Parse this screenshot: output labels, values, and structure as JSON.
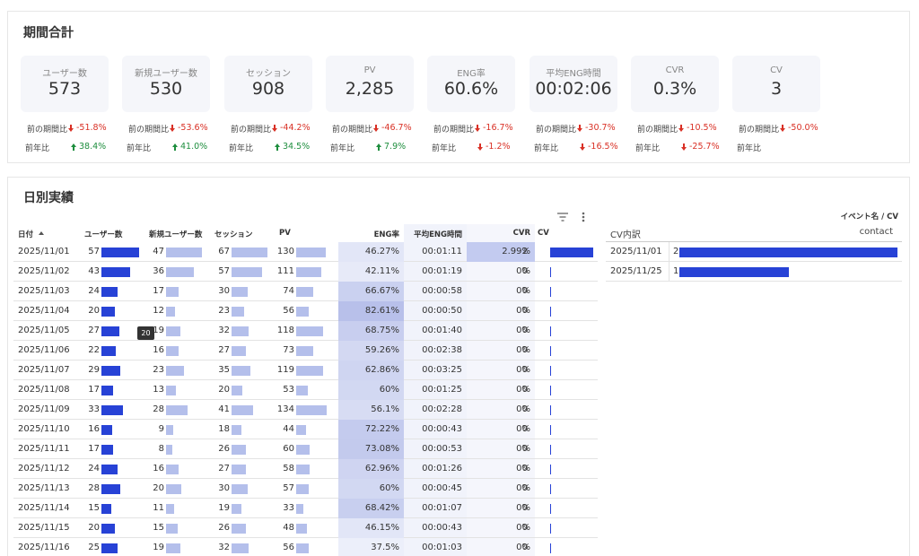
{
  "summary": {
    "title": "期間合計",
    "prev_label": "前の期間比",
    "yoy_label": "前年比",
    "kpis": [
      {
        "label": "ユーザー数",
        "value": "573",
        "prev": "-51.8%",
        "yoy": "38.4%"
      },
      {
        "label": "新規ユーザー数",
        "value": "530",
        "prev": "-53.6%",
        "yoy": "41.0%"
      },
      {
        "label": "セッション",
        "value": "908",
        "prev": "-44.2%",
        "yoy": "34.5%"
      },
      {
        "label": "PV",
        "value": "2,285",
        "prev": "-46.7%",
        "yoy": "7.9%"
      },
      {
        "label": "ENG率",
        "value": "60.6%",
        "prev": "-16.7%",
        "yoy": "-1.2%"
      },
      {
        "label": "平均ENG時間",
        "value": "00:02:06",
        "prev": "-30.7%",
        "yoy": "-16.5%"
      },
      {
        "label": "CVR",
        "value": "0.3%",
        "prev": "-10.5%",
        "yoy": "-25.7%"
      },
      {
        "label": "CV",
        "value": "3",
        "prev": "-50.0%"
      }
    ]
  },
  "daily": {
    "title": "日別実績",
    "columns": [
      "日付",
      "ユーザー数",
      "新規ユーザー数",
      "セッション",
      "PV",
      "ENG率",
      "平均ENG時間",
      "CVR",
      "CV"
    ],
    "rows": [
      [
        "2025/11/01",
        57,
        47,
        67,
        130,
        "46.27%",
        "00:01:11",
        "2.99%",
        2
      ],
      [
        "2025/11/02",
        43,
        36,
        57,
        111,
        "42.11%",
        "00:01:19",
        "0%",
        0
      ],
      [
        "2025/11/03",
        24,
        17,
        30,
        74,
        "66.67%",
        "00:00:58",
        "0%",
        0
      ],
      [
        "2025/11/04",
        20,
        12,
        23,
        56,
        "82.61%",
        "00:00:50",
        "0%",
        0
      ],
      [
        "2025/11/05",
        27,
        19,
        32,
        118,
        "68.75%",
        "00:01:40",
        "0%",
        0
      ],
      [
        "2025/11/06",
        22,
        16,
        27,
        73,
        "59.26%",
        "00:02:38",
        "0%",
        0
      ],
      [
        "2025/11/07",
        29,
        23,
        35,
        119,
        "62.86%",
        "00:03:25",
        "0%",
        0
      ],
      [
        "2025/11/08",
        17,
        13,
        20,
        53,
        "60%",
        "00:01:25",
        "0%",
        0
      ],
      [
        "2025/11/09",
        33,
        28,
        41,
        134,
        "56.1%",
        "00:02:28",
        "0%",
        0
      ],
      [
        "2025/11/10",
        16,
        9,
        18,
        44,
        "72.22%",
        "00:00:43",
        "0%",
        0
      ],
      [
        "2025/11/11",
        17,
        8,
        26,
        60,
        "73.08%",
        "00:00:53",
        "0%",
        0
      ],
      [
        "2025/11/12",
        24,
        16,
        27,
        58,
        "62.96%",
        "00:01:26",
        "0%",
        0
      ],
      [
        "2025/11/13",
        28,
        20,
        30,
        57,
        "60%",
        "00:00:45",
        "0%",
        0
      ],
      [
        "2025/11/14",
        15,
        11,
        19,
        33,
        "68.42%",
        "00:01:07",
        "0%",
        0
      ],
      [
        "2025/11/15",
        20,
        15,
        26,
        48,
        "46.15%",
        "00:00:43",
        "0%",
        0
      ],
      [
        "2025/11/16",
        25,
        19,
        32,
        56,
        "37.5%",
        "00:01:03",
        "0%",
        0
      ]
    ],
    "tooltip": 20
  },
  "cv_breakdown": {
    "header": "イベント名 / CV",
    "columns": [
      "CV内訳",
      "contact"
    ],
    "rows": [
      [
        "2025/11/01",
        2
      ],
      [
        "2025/11/25",
        1
      ]
    ]
  }
}
